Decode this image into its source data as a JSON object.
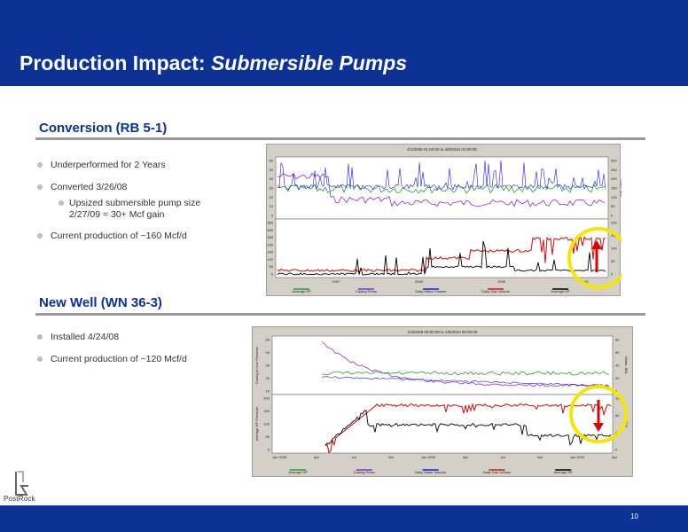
{
  "header": {
    "title_plain": "Production Impact: ",
    "title_italic": "Submersible Pumps"
  },
  "sections": [
    {
      "heading": "Conversion (RB 5-1)",
      "bullets": [
        {
          "text": "Underperformed for 2 Years",
          "level": 1
        },
        {
          "text": "Converted 3/26/08",
          "level": 1
        },
        {
          "text": "Upsized submersible pump size 2/27/09 = 30+ Mcf gain",
          "level": 2
        },
        {
          "text": "Current production of ~160 Mcf/d",
          "level": 1
        }
      ]
    },
    {
      "heading": "New Well (WN 36-3)",
      "bullets": [
        {
          "text": "Installed 4/24/08",
          "level": 1
        },
        {
          "text": "Current production of ~120 Mcf/d",
          "level": 1
        }
      ]
    }
  ],
  "chart_data": [
    {
      "type": "line",
      "title": "4/1/2006 01:00:00 to 4/8/2010 01:00:00",
      "x_ticks": [
        "2007",
        "2008",
        "2009",
        "2010"
      ],
      "top_panel": {
        "ylabel": "Casing & Line Pressure",
        "y_ticks": [
          "60",
          "50",
          "40",
          "30",
          "20",
          "10",
          "0"
        ],
        "right_ylabel": "Water, BBL",
        "right_ticks": [
          "300",
          "250",
          "200",
          "150",
          "100",
          "50",
          "0"
        ]
      },
      "bottom_panel": {
        "ylabel": "Average DP Pressure",
        "y_ticks": [
          "350",
          "300",
          "250",
          "200",
          "150",
          "100",
          "50",
          "0"
        ],
        "right_ticks": [
          "200",
          "150",
          "100",
          "50",
          "0"
        ]
      },
      "legend": [
        {
          "name": "Average SP",
          "color": "#2aa02a"
        },
        {
          "name": "Casing Press",
          "color": "#8a2be2"
        },
        {
          "name": "Daily Water Volume",
          "color": "#1a1aff"
        },
        {
          "name": "Daily Gas Volume",
          "color": "#d41a1a"
        },
        {
          "name": "Average DP",
          "color": "#000000"
        }
      ],
      "highlight": "yellow circle with red up arrow at latest gas volume"
    },
    {
      "type": "line",
      "title": "1/3/2008 00:00:00 to 4/6/2010 00:00:00",
      "x_ticks": [
        "Jan 2008",
        "Apr",
        "Jul",
        "Oct",
        "Jan 2009",
        "Apr",
        "Jul",
        "Oct",
        "Jan 2010",
        "Apr"
      ],
      "top_panel": {
        "ylabel": "Casing & Line Pressure",
        "y_ticks": [
          "50",
          "40",
          "30",
          "20",
          "10"
        ],
        "right_ylabel": "Water, BBL",
        "right_ticks": [
          "80",
          "60",
          "40",
          "20",
          "0"
        ]
      },
      "bottom_panel": {
        "ylabel": "Average DP Pressure",
        "y_ticks": [
          "200",
          "150",
          "100",
          "50",
          "0"
        ],
        "right_ylabel": "MCF",
        "right_ticks": [
          "160",
          "80",
          "40",
          "0"
        ]
      },
      "legend": [
        {
          "name": "Average SP",
          "color": "#2aa02a"
        },
        {
          "name": "Casing Press",
          "color": "#8a2be2"
        },
        {
          "name": "Daily Water Volume",
          "color": "#1a1aff"
        },
        {
          "name": "Daily Gas Volume",
          "color": "#d41a1a"
        },
        {
          "name": "Average DP",
          "color": "#000000"
        }
      ],
      "highlight": "yellow circle with red down arrow at latest gas volume"
    }
  ],
  "logo": {
    "text": "PostRock"
  },
  "footer": {
    "page_number": "10"
  }
}
